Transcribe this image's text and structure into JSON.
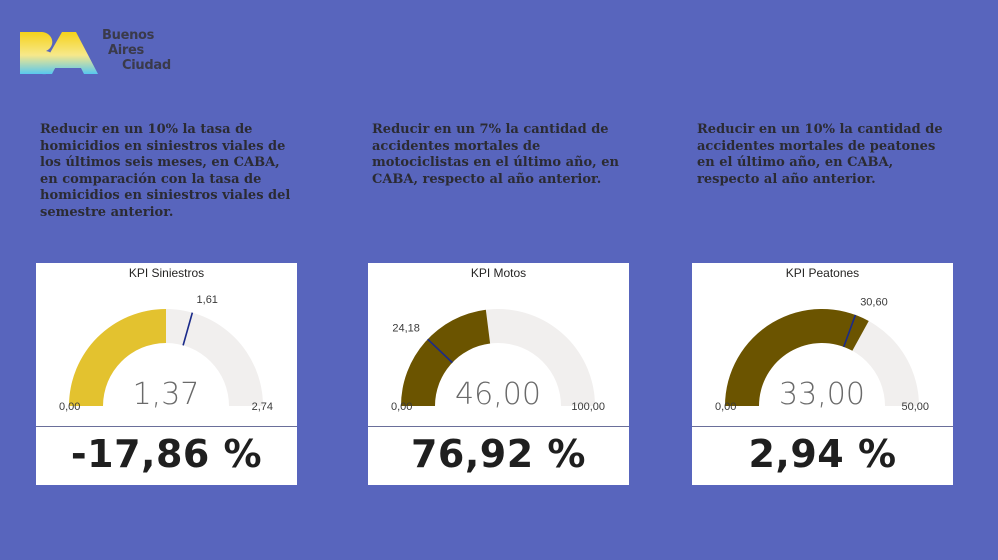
{
  "logo": {
    "mark": "BA",
    "line1": "Buenos",
    "line2": "Aires",
    "line3": "Ciudad"
  },
  "goals": [
    "Reducir en un 10% la tasa de homicidios en siniestros viales de los últimos seis meses, en CABA, en comparación con la tasa de homicidios en siniestros viales del semestre anterior.",
    "Reducir en un 7% la cantidad de accidentes mortales de motociclistas en el último año, en CABA, respecto al año anterior.",
    "Reducir en un 10% la cantidad de accidentes mortales de peatones en el último año, en CABA, respecto al año anterior."
  ],
  "colors": {
    "background": "#5865bd",
    "gauge_track": "#f1efee",
    "target_needle": "#1a2a8a"
  },
  "cards": [
    {
      "title": "KPI Siniestros",
      "value": 1.37,
      "min": 0,
      "max": 2.74,
      "target": 1.61,
      "value_label": "1,37",
      "min_label": "0,00",
      "max_label": "2,74",
      "target_label": "1,61",
      "fill_color": "#e3c22f",
      "kpi_label": "-17,86 %"
    },
    {
      "title": "KPI Motos",
      "value": 46.0,
      "min": 0,
      "max": 100,
      "target": 24.18,
      "value_label": "46,00",
      "min_label": "0,00",
      "max_label": "100,00",
      "target_label": "24,18",
      "fill_color": "#6b5400",
      "kpi_label": "76,92 %"
    },
    {
      "title": "KPI Peatones",
      "value": 33.0,
      "min": 0,
      "max": 50,
      "target": 30.6,
      "value_label": "33,00",
      "min_label": "0,00",
      "max_label": "50,00",
      "target_label": "30,60",
      "fill_color": "#6b5400",
      "kpi_label": "2,94 %"
    }
  ]
}
